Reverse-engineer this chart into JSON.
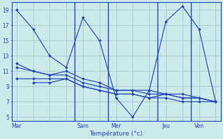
{
  "xlabel": "Température (°c)",
  "background_color": "#cceaea",
  "grid_color": "#99bbcc",
  "line_color": "#2244bb",
  "spine_color": "#2244bb",
  "ylim": [
    4.5,
    20
  ],
  "yticks": [
    5,
    7,
    9,
    11,
    13,
    15,
    17,
    19
  ],
  "day_labels": [
    "Mar",
    "Sam",
    "Mer",
    "Jeu",
    "Ven"
  ],
  "day_tick_pos": [
    0,
    4,
    6,
    9,
    11
  ],
  "xlim": [
    -0.3,
    12.3
  ],
  "vline_pos": [
    3.5,
    5.5,
    8.5,
    10.5
  ],
  "line1_x": [
    0,
    1,
    2,
    3,
    4,
    5,
    6,
    7,
    8,
    9,
    10,
    11,
    12
  ],
  "line1_y": [
    19,
    16.5,
    13,
    11.5,
    18,
    15,
    7.5,
    5,
    8.5,
    17.5,
    19.5,
    16.5,
    7
  ],
  "line2_x": [
    0,
    1,
    2,
    3,
    4,
    5,
    6,
    7,
    8,
    9,
    10,
    11,
    12
  ],
  "line2_y": [
    12,
    11,
    10.5,
    11,
    10,
    9.5,
    8.5,
    8.5,
    8.5,
    8,
    8,
    7.5,
    7
  ],
  "line3_x": [
    0,
    1,
    2,
    3,
    4,
    5,
    6,
    7,
    8,
    9,
    10,
    11,
    12
  ],
  "line3_y": [
    11.5,
    11,
    10.5,
    10.5,
    9.5,
    9,
    8.5,
    8.5,
    8,
    8,
    7.5,
    7.5,
    7
  ],
  "line4_x": [
    0,
    1,
    2,
    3,
    4,
    5,
    6,
    7,
    8,
    9,
    10,
    11,
    12
  ],
  "line4_y": [
    10,
    10,
    10,
    10,
    9,
    8.5,
    8,
    8,
    7.5,
    7.5,
    7,
    7,
    7
  ],
  "line5_x": [
    1,
    2,
    3,
    4,
    5,
    6,
    7,
    8,
    9,
    10,
    11,
    12
  ],
  "line5_y": [
    9.5,
    9.5,
    10,
    9,
    8.5,
    8,
    8,
    7.5,
    8,
    7.5,
    7.5,
    7
  ]
}
